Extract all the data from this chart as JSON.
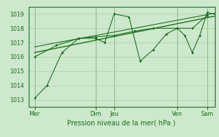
{
  "bg_color": "#cde8cd",
  "grid_color": "#a8cca8",
  "line_color": "#1a6b1a",
  "xlabel": "Pression niveau de la mer( hPa )",
  "ylim": [
    1012.5,
    1019.5
  ],
  "yticks": [
    1013,
    1014,
    1015,
    1016,
    1017,
    1018,
    1019
  ],
  "xlim": [
    0.0,
    1.0
  ],
  "xtick_positions": [
    0.033,
    0.36,
    0.46,
    0.8,
    0.96
  ],
  "xtick_labels": [
    "Mer",
    "Dim",
    "Jeu",
    "Ven",
    "Sam"
  ],
  "vline_positions": [
    0.033,
    0.36,
    0.46,
    0.8,
    0.96
  ],
  "series1_x": [
    0.033,
    0.1,
    0.18,
    0.27,
    0.36,
    0.41,
    0.46,
    0.54,
    0.6,
    0.67,
    0.74,
    0.8,
    0.84,
    0.88,
    0.92,
    0.96,
    1.0
  ],
  "series1_y": [
    1013.1,
    1014.0,
    1016.3,
    1017.3,
    1017.3,
    1017.0,
    1019.0,
    1018.8,
    1015.7,
    1016.5,
    1017.6,
    1018.0,
    1017.5,
    1016.3,
    1017.5,
    1019.1,
    1019.0
  ],
  "series2_x": [
    0.033,
    0.15,
    0.27,
    0.36,
    0.46,
    0.57,
    0.67,
    0.8,
    0.88,
    0.96
  ],
  "series2_y": [
    1016.0,
    1016.8,
    1017.3,
    1017.4,
    1017.5,
    1017.8,
    1018.0,
    1018.0,
    1018.0,
    1018.9
  ],
  "trend_x": [
    0.033,
    1.0
  ],
  "trend_y": [
    1016.3,
    1018.85
  ],
  "trend2_x": [
    0.033,
    1.0
  ],
  "trend2_y": [
    1016.7,
    1019.05
  ],
  "xlabel_fontsize": 7,
  "ytick_fontsize": 6,
  "xtick_fontsize": 6
}
